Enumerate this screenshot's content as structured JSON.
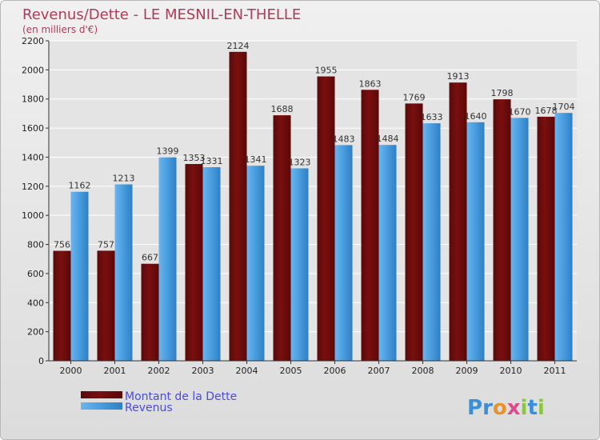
{
  "chart_data": {
    "type": "bar",
    "title": "Revenus/Dette - LE MESNIL-EN-THELLE",
    "subtitle": "(en milliers d'€)",
    "categories": [
      "2000",
      "2001",
      "2002",
      "2003",
      "2004",
      "2005",
      "2006",
      "2007",
      "2008",
      "2009",
      "2010",
      "2011"
    ],
    "series": [
      {
        "name": "Montant de la Dette",
        "color": "#7a0f0f",
        "values": [
          756,
          757,
          667,
          1353,
          2124,
          1688,
          1955,
          1863,
          1769,
          1913,
          1798,
          1678
        ]
      },
      {
        "name": "Revenus",
        "color": "#4a9fe0",
        "values": [
          1162,
          1213,
          1399,
          1331,
          1341,
          1323,
          1483,
          1484,
          1633,
          1640,
          1670,
          1704
        ]
      }
    ],
    "ylim": [
      0,
      2200
    ],
    "yticks": [
      0,
      200,
      400,
      600,
      800,
      1000,
      1200,
      1400,
      1600,
      1800,
      2000,
      2200
    ],
    "grid": true,
    "legend_position": "bottom-left"
  },
  "brand": {
    "text": "Proxiti",
    "letters": [
      "P",
      "r",
      "o",
      "x",
      "i",
      "t",
      "i"
    ],
    "colors": [
      "#3a8fd8",
      "#3a8fd8",
      "#e8922a",
      "#e04a8a",
      "#8cc63f",
      "#3a8fd8",
      "#8cc63f"
    ]
  }
}
